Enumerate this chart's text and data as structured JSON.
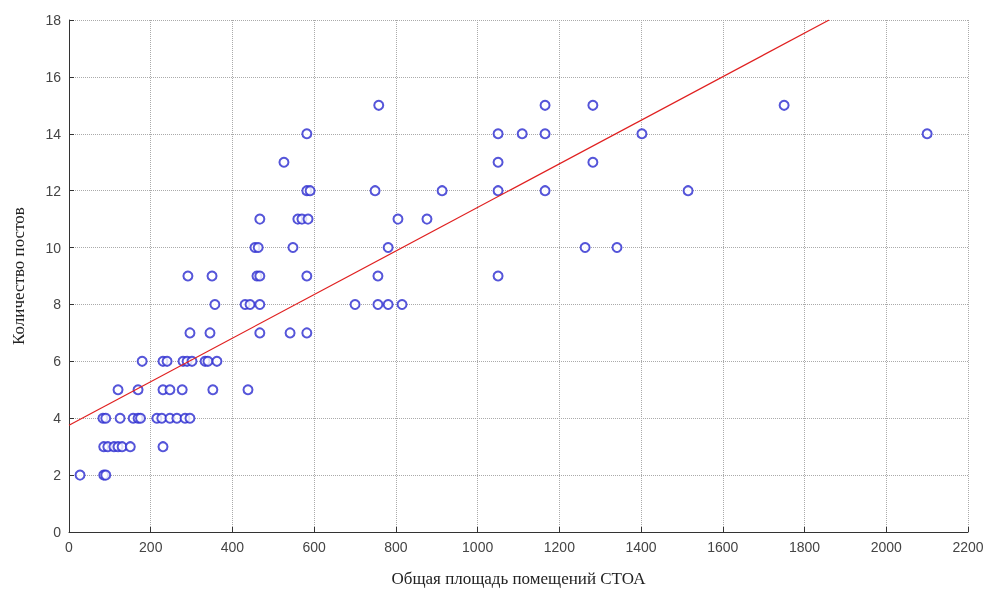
{
  "chart_data": {
    "type": "scatter",
    "xlabel": "Общая площадь помещений СТОА",
    "ylabel": "Количество постов",
    "xlim": [
      0,
      2200
    ],
    "xticks": [
      0,
      200,
      400,
      600,
      800,
      1000,
      1200,
      1400,
      1600,
      1800,
      2000,
      2200
    ],
    "ylim": [
      0,
      18
    ],
    "yticks": [
      0,
      2,
      4,
      6,
      8,
      10,
      12,
      14,
      16,
      18
    ],
    "grid": true,
    "series": [
      {
        "color": "#2a2ad0",
        "marker": "circle",
        "x": [
          27,
          85,
          90,
          85,
          95,
          110,
          120,
          130,
          150,
          230,
          83,
          90,
          125,
          157,
          169,
          175,
          215,
          227,
          247,
          264,
          284,
          296,
          120,
          169,
          230,
          247,
          277,
          352,
          438,
          179,
          230,
          240,
          279,
          289,
          301,
          333,
          340,
          362,
          296,
          345,
          467,
          541,
          582,
          357,
          431,
          443,
          467,
          700,
          756,
          781,
          815,
          291,
          350,
          460,
          467,
          582,
          756,
          1050,
          455,
          463,
          548,
          781,
          1263,
          1341,
          467,
          560,
          570,
          585,
          805,
          876,
          582,
          590,
          749,
          913,
          1050,
          1165,
          1515,
          526,
          1050,
          1282,
          582,
          1050,
          1109,
          1165,
          1402,
          2100,
          758,
          1165,
          1282,
          1750
        ],
        "values": [
          2,
          2,
          2,
          3,
          3,
          3,
          3,
          3,
          3,
          3,
          4,
          4,
          4,
          4,
          4,
          4,
          4,
          4,
          4,
          4,
          4,
          4,
          5,
          5,
          5,
          5,
          5,
          5,
          5,
          6,
          6,
          6,
          6,
          6,
          6,
          6,
          6,
          6,
          7,
          7,
          7,
          7,
          7,
          8,
          8,
          8,
          8,
          8,
          8,
          8,
          8,
          9,
          9,
          9,
          9,
          9,
          9,
          9,
          10,
          10,
          10,
          10,
          10,
          10,
          11,
          11,
          11,
          11,
          11,
          11,
          12,
          12,
          12,
          12,
          12,
          12,
          12,
          13,
          13,
          13,
          14,
          14,
          14,
          14,
          14,
          14,
          15,
          15,
          15,
          15
        ]
      },
      {
        "type": "line",
        "color": "#e02020",
        "marker": "none",
        "line_style": "solid",
        "x": [
          0,
          1860
        ],
        "values": [
          3.75,
          18
        ]
      }
    ]
  }
}
